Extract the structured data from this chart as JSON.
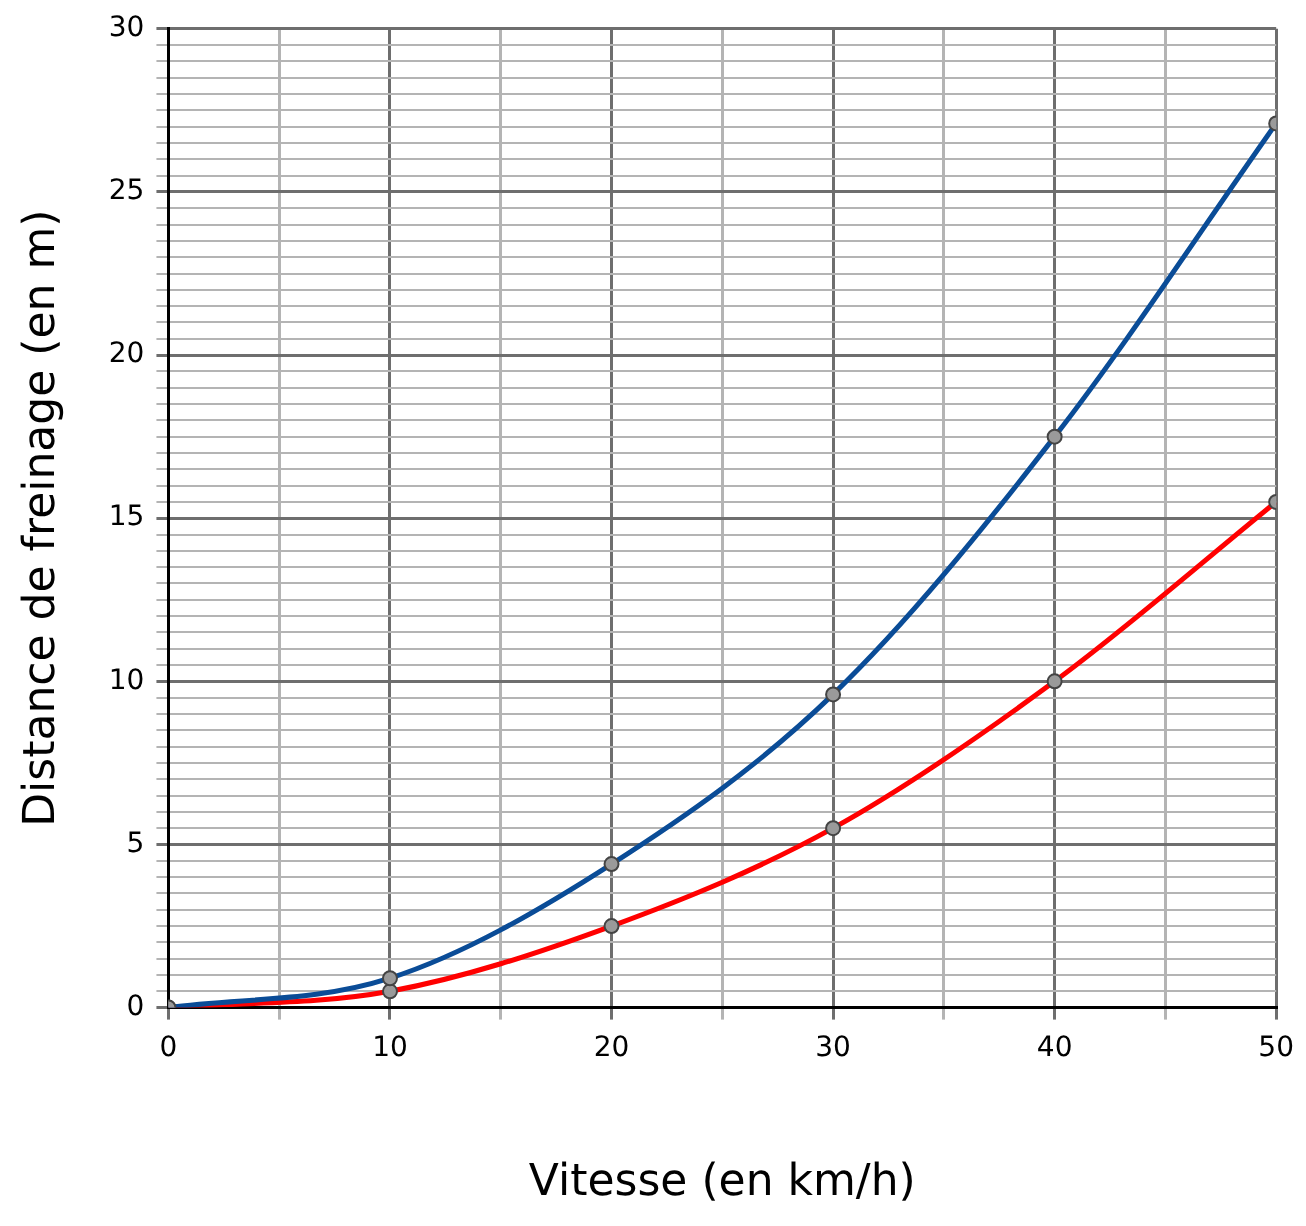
{
  "chart_data": {
    "type": "line",
    "xlabel": "Vitesse (en km/h)",
    "ylabel": "Distance de freinage (en m)",
    "x": [
      0,
      10,
      20,
      30,
      40,
      50
    ],
    "series": [
      {
        "color": "#0a4c97",
        "values": [
          0,
          0.9,
          4.4,
          9.6,
          17.5,
          27.1
        ]
      },
      {
        "color": "#ff0000",
        "values": [
          0,
          0.5,
          2.5,
          5.5,
          10,
          15.5
        ]
      }
    ],
    "xlim": [
      0,
      50
    ],
    "ylim": [
      0,
      30
    ],
    "xticks": [
      0,
      {
        "value": 5,
        "label": null
      },
      10,
      {
        "value": 15,
        "label": null
      },
      20,
      {
        "value": 25,
        "label": null
      },
      30,
      {
        "value": 35,
        "label": null
      },
      40,
      {
        "value": 45,
        "label": null
      },
      50
    ],
    "yticks": [
      0,
      {
        "value": 0.5,
        "label": null
      },
      {
        "value": 1,
        "label": null
      },
      {
        "value": 1.5,
        "label": null
      },
      {
        "value": 2,
        "label": null
      },
      {
        "value": 2.5,
        "label": null
      },
      {
        "value": 3,
        "label": null
      },
      {
        "value": 3.5,
        "label": null
      },
      {
        "value": 4,
        "label": null
      },
      {
        "value": 4.5,
        "label": null
      },
      5,
      {
        "value": 5.5,
        "label": null
      },
      {
        "value": 6,
        "label": null
      },
      {
        "value": 6.5,
        "label": null
      },
      {
        "value": 7,
        "label": null
      },
      {
        "value": 7.5,
        "label": null
      },
      {
        "value": 8,
        "label": null
      },
      {
        "value": 8.5,
        "label": null
      },
      {
        "value": 9,
        "label": null
      },
      {
        "value": 9.5,
        "label": null
      },
      10,
      {
        "value": 10.5,
        "label": null
      },
      {
        "value": 11,
        "label": null
      },
      {
        "value": 11.5,
        "label": null
      },
      {
        "value": 12,
        "label": null
      },
      {
        "value": 12.5,
        "label": null
      },
      {
        "value": 13,
        "label": null
      },
      {
        "value": 13.5,
        "label": null
      },
      {
        "value": 14,
        "label": null
      },
      {
        "value": 14.5,
        "label": null
      },
      15,
      {
        "value": 15.5,
        "label": null
      },
      {
        "value": 16,
        "label": null
      },
      {
        "value": 16.5,
        "label": null
      },
      {
        "value": 17,
        "label": null
      },
      {
        "value": 17.5,
        "label": null
      },
      {
        "value": 18,
        "label": null
      },
      {
        "value": 18.5,
        "label": null
      },
      {
        "value": 19,
        "label": null
      },
      {
        "value": 19.5,
        "label": null
      },
      20,
      {
        "value": 20.5,
        "label": null
      },
      {
        "value": 21,
        "label": null
      },
      {
        "value": 21.5,
        "label": null
      },
      {
        "value": 22,
        "label": null
      },
      {
        "value": 22.5,
        "label": null
      },
      {
        "value": 23,
        "label": null
      },
      {
        "value": 23.5,
        "label": null
      },
      {
        "value": 24,
        "label": null
      },
      {
        "value": 24.5,
        "label": null
      },
      25,
      {
        "value": 25.5,
        "label": null
      },
      {
        "value": 26,
        "label": null
      },
      {
        "value": 26.5,
        "label": null
      },
      {
        "value": 27,
        "label": null
      },
      {
        "value": 27.5,
        "label": null
      },
      {
        "value": 28,
        "label": null
      },
      {
        "value": 28.5,
        "label": null
      },
      {
        "value": 29,
        "label": null
      },
      {
        "value": 29.5,
        "label": null
      },
      30
    ],
    "grid": true,
    "marker": "circle",
    "line_style": "solid"
  }
}
